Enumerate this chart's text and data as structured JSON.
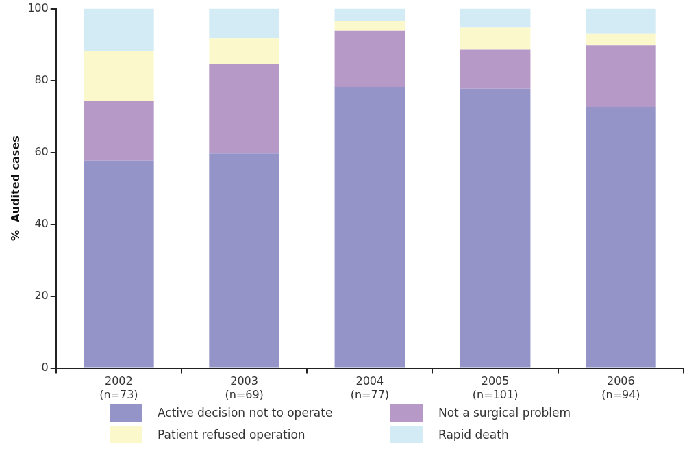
{
  "chart_data": {
    "type": "bar",
    "stacked": true,
    "ylabel": "%  Audited cases",
    "categories": [
      "2002\n(n=73)",
      "2003\n(n=69)",
      "2004\n(n=77)",
      "2005\n(n=101)",
      "2006\n(n=94)"
    ],
    "series": [
      {
        "name": "Active decision not to operate",
        "color": "#9594c8",
        "values": [
          57.7,
          59.7,
          78.2,
          77.7,
          72.6
        ]
      },
      {
        "name": "Not a surgical problem",
        "color": "#b799c8",
        "values": [
          16.6,
          24.8,
          15.7,
          10.9,
          17.2
        ]
      },
      {
        "name": "Patient refused operation",
        "color": "#fbf9cb",
        "values": [
          13.8,
          7.2,
          2.8,
          6.1,
          3.3
        ]
      },
      {
        "name": "Rapid death",
        "color": "#d3ebf5",
        "values": [
          11.9,
          8.3,
          3.3,
          5.3,
          6.9
        ]
      }
    ],
    "ylim": [
      0,
      100
    ],
    "yticks": [
      0,
      20,
      40,
      60,
      80,
      100
    ],
    "grid": false,
    "legend": "bottom"
  }
}
